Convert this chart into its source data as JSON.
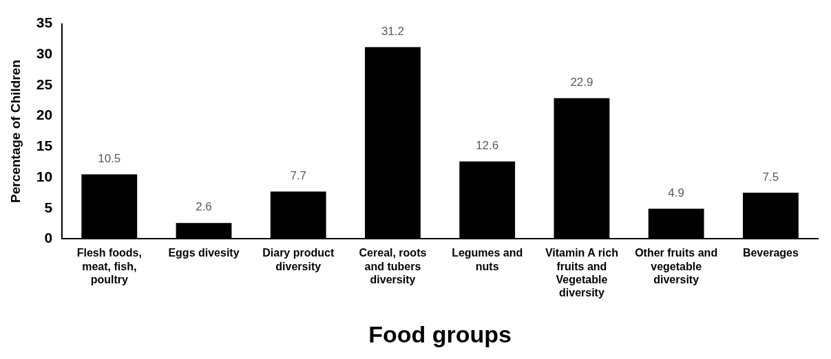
{
  "chart_data": {
    "type": "bar",
    "xlabel": "Food groups",
    "ylabel": "Percentage of Children",
    "categories": [
      "Flesh foods, meat, fish, poultry",
      "Eggs divesity",
      "Diary product diversity",
      "Cereal, roots and tubers diversity",
      "Legumes and nuts",
      "Vitamin A rich fruits and Vegetable diversity",
      "Other fruits and vegetable diversity",
      "Beverages"
    ],
    "values": [
      10.5,
      2.6,
      7.7,
      31.2,
      12.6,
      22.9,
      4.9,
      7.5
    ],
    "color": "#000000",
    "ylim": [
      0,
      35
    ],
    "yticks": [
      0,
      5,
      10,
      15,
      20,
      25,
      30,
      35
    ],
    "grid": false,
    "legend": false,
    "data_labels": true
  }
}
